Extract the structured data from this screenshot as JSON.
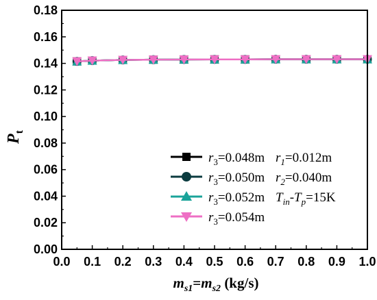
{
  "chart_data": {
    "type": "line",
    "title": "",
    "xlabel": {
      "a": "m",
      "a_sub": "s1",
      "eq": "=",
      "b": "m",
      "b_sub": "s2",
      "unit": " (kg/s)"
    },
    "ylabel": {
      "main": "P",
      "sub": "t"
    },
    "xlim": [
      0.0,
      1.0
    ],
    "ylim": [
      0.0,
      0.18
    ],
    "xticks": [
      "0.0",
      "0.1",
      "0.2",
      "0.3",
      "0.4",
      "0.5",
      "0.6",
      "0.7",
      "0.8",
      "0.9",
      "1.0"
    ],
    "yticks": [
      "0.00",
      "0.02",
      "0.04",
      "0.06",
      "0.08",
      "0.10",
      "0.12",
      "0.14",
      "0.16",
      "0.18"
    ],
    "grid": false,
    "legend_position": "lower-right",
    "x": [
      0.05,
      0.1,
      0.2,
      0.3,
      0.4,
      0.5,
      0.6,
      0.7,
      0.8,
      0.9,
      1.0
    ],
    "series": [
      {
        "name": "r3=0.048m",
        "marker": "square",
        "color": "#000000",
        "values": [
          0.1415,
          0.1421,
          0.1426,
          0.1428,
          0.1429,
          0.143,
          0.143,
          0.1431,
          0.1431,
          0.1431,
          0.1431
        ]
      },
      {
        "name": "r3=0.050m",
        "marker": "circle",
        "color": "#0b3b3f",
        "values": [
          0.1415,
          0.1421,
          0.1426,
          0.1428,
          0.1429,
          0.143,
          0.143,
          0.1431,
          0.1431,
          0.1431,
          0.1431
        ]
      },
      {
        "name": "r3=0.052m",
        "marker": "triangle-up",
        "color": "#1aa39a",
        "values": [
          0.1415,
          0.1421,
          0.1426,
          0.1428,
          0.1429,
          0.143,
          0.143,
          0.1431,
          0.1431,
          0.1431,
          0.1431
        ]
      },
      {
        "name": "r3=0.054m",
        "marker": "triangle-down",
        "color": "#ee6fc4",
        "values": [
          0.1415,
          0.1421,
          0.1426,
          0.1428,
          0.1429,
          0.143,
          0.143,
          0.1431,
          0.1431,
          0.1431,
          0.1431
        ]
      }
    ],
    "legend": [
      {
        "r": "r",
        "r_sub": "3",
        "val": "=0.048m",
        "note": "r",
        "note_sub": "1",
        "note_val": "=0.012m"
      },
      {
        "r": "r",
        "r_sub": "3",
        "val": "=0.050m",
        "note": "r",
        "note_sub": "2",
        "note_val": "=0.040m"
      },
      {
        "r": "r",
        "r_sub": "3",
        "val": "=0.052m",
        "note": "T",
        "note_sub": "in",
        "note_val": "-",
        "note2": "T",
        "note2_sub": "p",
        "note2_val": "=15K"
      },
      {
        "r": "r",
        "r_sub": "3",
        "val": "=0.054m"
      }
    ]
  }
}
